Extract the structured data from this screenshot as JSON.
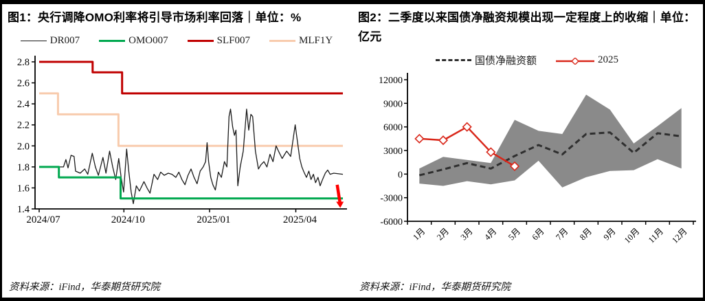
{
  "panels": {
    "left": {
      "source": "资料来源：iFind，华泰期货研究院"
    },
    "right": {
      "source": "资料来源：iFind，华泰期货研究院"
    }
  },
  "chart_data": [
    {
      "type": "line",
      "title": "图1：央行调降OMO利率将引导市场利率回落｜单位：%",
      "unit": "%",
      "ylim": [
        1.4,
        2.8
      ],
      "yticks": [
        1.4,
        1.6,
        1.8,
        2.0,
        2.2,
        2.4,
        2.6,
        2.8
      ],
      "ytick_decimals": 1,
      "grid": false,
      "legend_position": "top",
      "xticks": [
        {
          "pos": 0.0,
          "label": "2024/07"
        },
        {
          "pos": 0.279,
          "label": "2024/10"
        },
        {
          "pos": 0.561,
          "label": "2025/01"
        },
        {
          "pos": 0.845,
          "label": "2025/04"
        }
      ],
      "series": [
        {
          "name": "MLF1Y",
          "color": "#F8CBAD",
          "width": 3,
          "points": [
            [
              0,
              2.5
            ],
            [
              0.062,
              2.5
            ],
            [
              0.062,
              2.3
            ],
            [
              0.261,
              2.3
            ],
            [
              0.261,
              2.0
            ],
            [
              1,
              2.0
            ]
          ]
        },
        {
          "name": "SLF007",
          "color": "#C00000",
          "width": 3,
          "points": [
            [
              0,
              2.8
            ],
            [
              0.176,
              2.8
            ],
            [
              0.176,
              2.7
            ],
            [
              0.273,
              2.7
            ],
            [
              0.273,
              2.5
            ],
            [
              1,
              2.5
            ]
          ]
        },
        {
          "name": "DR007",
          "color": "#1A1A1A",
          "width": 1.3,
          "points": [
            [
              0,
              1.8
            ],
            [
              0.04,
              1.8
            ],
            [
              0.08,
              1.8
            ],
            [
              0.088,
              1.87
            ],
            [
              0.095,
              1.79
            ],
            [
              0.105,
              1.91
            ],
            [
              0.115,
              1.9
            ],
            [
              0.12,
              1.76
            ],
            [
              0.135,
              1.74
            ],
            [
              0.15,
              1.78
            ],
            [
              0.16,
              1.73
            ],
            [
              0.175,
              1.93
            ],
            [
              0.185,
              1.8
            ],
            [
              0.195,
              1.72
            ],
            [
              0.21,
              1.89
            ],
            [
              0.22,
              1.74
            ],
            [
              0.232,
              1.95
            ],
            [
              0.242,
              1.8
            ],
            [
              0.252,
              1.68
            ],
            [
              0.262,
              1.88
            ],
            [
              0.27,
              1.7
            ],
            [
              0.278,
              1.56
            ],
            [
              0.288,
              1.97
            ],
            [
              0.295,
              1.76
            ],
            [
              0.303,
              1.56
            ],
            [
              0.31,
              1.45
            ],
            [
              0.32,
              1.62
            ],
            [
              0.33,
              1.57
            ],
            [
              0.345,
              1.66
            ],
            [
              0.355,
              1.6
            ],
            [
              0.365,
              1.55
            ],
            [
              0.378,
              1.73
            ],
            [
              0.39,
              1.68
            ],
            [
              0.4,
              1.75
            ],
            [
              0.412,
              1.72
            ],
            [
              0.425,
              1.74
            ],
            [
              0.437,
              1.73
            ],
            [
              0.45,
              1.7
            ],
            [
              0.46,
              1.75
            ],
            [
              0.47,
              1.68
            ],
            [
              0.48,
              1.63
            ],
            [
              0.49,
              1.72
            ],
            [
              0.5,
              1.78
            ],
            [
              0.51,
              1.7
            ],
            [
              0.52,
              1.64
            ],
            [
              0.53,
              1.76
            ],
            [
              0.54,
              1.8
            ],
            [
              0.548,
              1.85
            ],
            [
              0.553,
              2.03
            ],
            [
              0.558,
              1.85
            ],
            [
              0.565,
              1.7
            ],
            [
              0.572,
              1.63
            ],
            [
              0.58,
              1.58
            ],
            [
              0.59,
              1.75
            ],
            [
              0.6,
              1.7
            ],
            [
              0.61,
              1.85
            ],
            [
              0.618,
              1.8
            ],
            [
              0.625,
              2.28
            ],
            [
              0.63,
              2.35
            ],
            [
              0.637,
              2.18
            ],
            [
              0.643,
              2.1
            ],
            [
              0.648,
              2.15
            ],
            [
              0.654,
              1.62
            ],
            [
              0.662,
              1.8
            ],
            [
              0.672,
              1.95
            ],
            [
              0.683,
              2.35
            ],
            [
              0.69,
              2.15
            ],
            [
              0.697,
              2.3
            ],
            [
              0.703,
              2.28
            ],
            [
              0.712,
              1.95
            ],
            [
              0.722,
              1.78
            ],
            [
              0.73,
              1.82
            ],
            [
              0.74,
              1.85
            ],
            [
              0.75,
              1.8
            ],
            [
              0.76,
              1.92
            ],
            [
              0.77,
              1.85
            ],
            [
              0.78,
              2.0
            ],
            [
              0.788,
              1.95
            ],
            [
              0.8,
              1.88
            ],
            [
              0.815,
              1.95
            ],
            [
              0.828,
              1.9
            ],
            [
              0.843,
              2.2
            ],
            [
              0.85,
              2.05
            ],
            [
              0.858,
              1.88
            ],
            [
              0.865,
              1.8
            ],
            [
              0.872,
              1.75
            ],
            [
              0.88,
              1.7
            ],
            [
              0.888,
              1.76
            ],
            [
              0.895,
              1.68
            ],
            [
              0.903,
              1.73
            ],
            [
              0.91,
              1.65
            ],
            [
              0.918,
              1.7
            ],
            [
              0.925,
              1.62
            ],
            [
              0.933,
              1.68
            ],
            [
              0.942,
              1.74
            ],
            [
              0.95,
              1.77
            ],
            [
              0.958,
              1.73
            ],
            [
              0.97,
              1.74
            ],
            [
              1.0,
              1.73
            ]
          ]
        },
        {
          "name": "OMO007",
          "color": "#00A84F",
          "width": 3,
          "points": [
            [
              0,
              1.8
            ],
            [
              0.065,
              1.8
            ],
            [
              0.065,
              1.7
            ],
            [
              0.268,
              1.7
            ],
            [
              0.268,
              1.5
            ],
            [
              1,
              1.5
            ]
          ]
        }
      ],
      "arrow": {
        "pos": 0.988,
        "from": 1.63,
        "to": 1.41,
        "color": "#FF0000"
      }
    },
    {
      "type": "line-band",
      "title": "图2：二季度以来国债净融资规模出现一定程度上的收缩｜单位：亿元",
      "unit": "亿元",
      "categories": [
        "1月",
        "2月",
        "3月",
        "4月",
        "5月",
        "6月",
        "7月",
        "8月",
        "9月",
        "10月",
        "11月",
        "12月"
      ],
      "ylim": [
        -6000,
        12000
      ],
      "yticks": [
        -6000,
        -3000,
        0,
        3000,
        6000,
        9000,
        12000
      ],
      "ytick_decimals": 0,
      "grid": false,
      "legend_position": "top",
      "band": {
        "color": "#8A8A8A",
        "lower": [
          -1200,
          -1500,
          -900,
          -1300,
          -800,
          1700,
          -1700,
          -400,
          400,
          500,
          1900,
          700
        ],
        "upper": [
          700,
          2200,
          1800,
          1400,
          6900,
          5500,
          5100,
          10100,
          8200,
          3900,
          6100,
          8400
        ]
      },
      "series": [
        {
          "name": "国债净融资额",
          "color": "#2F2F2F",
          "style": "dashed",
          "width": 3,
          "values": [
            -150,
            600,
            1400,
            700,
            2300,
            3700,
            2500,
            5100,
            5300,
            2700,
            5200,
            4800
          ]
        },
        {
          "name": "2025",
          "color": "#D92619",
          "style": "solid",
          "marker": "diamond",
          "width": 2.5,
          "values": [
            4500,
            4300,
            6000,
            2800,
            1000
          ]
        }
      ]
    }
  ]
}
